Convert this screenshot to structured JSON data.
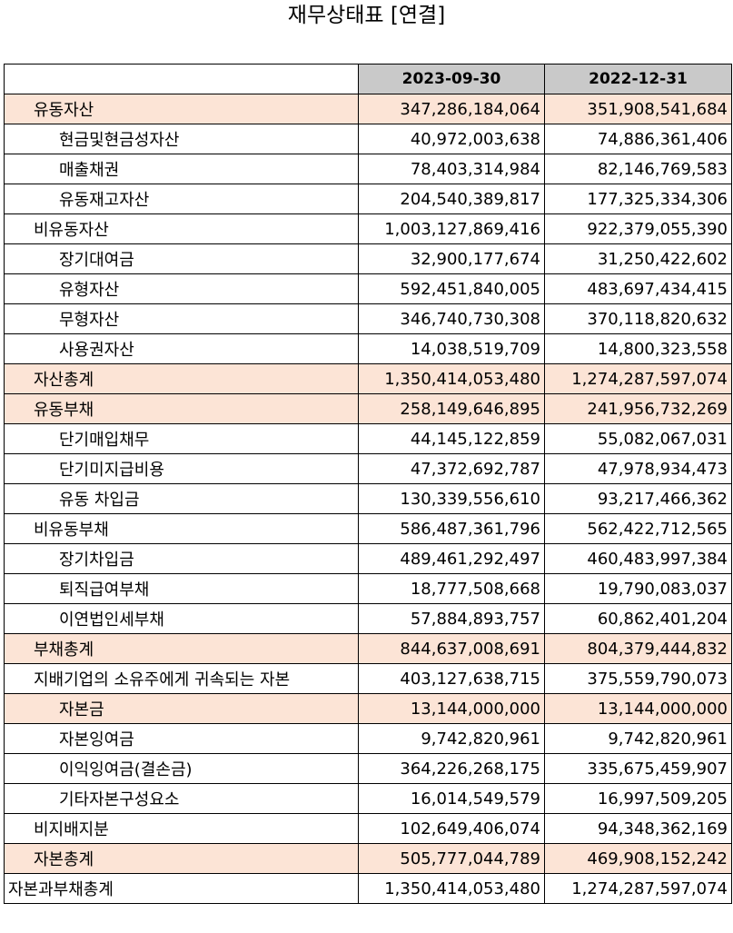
{
  "title": "재무상태표 [연결]",
  "columns": [
    "",
    "2023-09-30",
    "2022-12-31"
  ],
  "colors": {
    "header_bg": "#c9c9c9",
    "highlight_bg": "#fce4d6"
  },
  "rows": [
    {
      "label": "유동자산",
      "level": 1,
      "highlight": true,
      "v2023": "347,286,184,064",
      "v2022": "351,908,541,684"
    },
    {
      "label": "현금및현금성자산",
      "level": 2,
      "highlight": false,
      "v2023": "40,972,003,638",
      "v2022": "74,886,361,406"
    },
    {
      "label": "매출채권",
      "level": 2,
      "highlight": false,
      "v2023": "78,403,314,984",
      "v2022": "82,146,769,583"
    },
    {
      "label": "유동재고자산",
      "level": 2,
      "highlight": false,
      "v2023": "204,540,389,817",
      "v2022": "177,325,334,306"
    },
    {
      "label": "비유동자산",
      "level": 1,
      "highlight": false,
      "v2023": "1,003,127,869,416",
      "v2022": "922,379,055,390"
    },
    {
      "label": "장기대여금",
      "level": 2,
      "highlight": false,
      "v2023": "32,900,177,674",
      "v2022": "31,250,422,602"
    },
    {
      "label": "유형자산",
      "level": 2,
      "highlight": false,
      "v2023": "592,451,840,005",
      "v2022": "483,697,434,415"
    },
    {
      "label": "무형자산",
      "level": 2,
      "highlight": false,
      "v2023": "346,740,730,308",
      "v2022": "370,118,820,632"
    },
    {
      "label": "사용권자산",
      "level": 2,
      "highlight": false,
      "v2023": "14,038,519,709",
      "v2022": "14,800,323,558"
    },
    {
      "label": "자산총계",
      "level": 1,
      "highlight": true,
      "v2023": "1,350,414,053,480",
      "v2022": "1,274,287,597,074"
    },
    {
      "label": "유동부채",
      "level": 1,
      "highlight": true,
      "v2023": "258,149,646,895",
      "v2022": "241,956,732,269"
    },
    {
      "label": "단기매입채무",
      "level": 2,
      "highlight": false,
      "v2023": "44,145,122,859",
      "v2022": "55,082,067,031"
    },
    {
      "label": "단기미지급비용",
      "level": 2,
      "highlight": false,
      "v2023": "47,372,692,787",
      "v2022": "47,978,934,473"
    },
    {
      "label": "유동 차입금",
      "level": 2,
      "highlight": false,
      "v2023": "130,339,556,610",
      "v2022": "93,217,466,362"
    },
    {
      "label": "비유동부채",
      "level": 1,
      "highlight": false,
      "v2023": "586,487,361,796",
      "v2022": "562,422,712,565"
    },
    {
      "label": "장기차입금",
      "level": 2,
      "highlight": false,
      "v2023": "489,461,292,497",
      "v2022": "460,483,997,384"
    },
    {
      "label": "퇴직급여부채",
      "level": 2,
      "highlight": false,
      "v2023": "18,777,508,668",
      "v2022": "19,790,083,037"
    },
    {
      "label": "이연법인세부채",
      "level": 2,
      "highlight": false,
      "v2023": "57,884,893,757",
      "v2022": "60,862,401,204"
    },
    {
      "label": "부채총계",
      "level": 1,
      "highlight": true,
      "v2023": "844,637,008,691",
      "v2022": "804,379,444,832"
    },
    {
      "label": "지배기업의 소유주에게 귀속되는 자본",
      "level": 1,
      "highlight": false,
      "v2023": "403,127,638,715",
      "v2022": "375,559,790,073"
    },
    {
      "label": "자본금",
      "level": 2,
      "highlight": true,
      "v2023": "13,144,000,000",
      "v2022": "13,144,000,000"
    },
    {
      "label": "자본잉여금",
      "level": 2,
      "highlight": false,
      "v2023": "9,742,820,961",
      "v2022": "9,742,820,961"
    },
    {
      "label": "이익잉여금(결손금)",
      "level": 2,
      "highlight": false,
      "v2023": "364,226,268,175",
      "v2022": "335,675,459,907"
    },
    {
      "label": "기타자본구성요소",
      "level": 2,
      "highlight": false,
      "v2023": "16,014,549,579",
      "v2022": "16,997,509,205"
    },
    {
      "label": "비지배지분",
      "level": 1,
      "highlight": false,
      "v2023": "102,649,406,074",
      "v2022": "94,348,362,169"
    },
    {
      "label": "자본총계",
      "level": 1,
      "highlight": true,
      "v2023": "505,777,044,789",
      "v2022": "469,908,152,242"
    },
    {
      "label": "자본과부채총계",
      "level": 0,
      "highlight": false,
      "v2023": "1,350,414,053,480",
      "v2022": "1,274,287,597,074"
    }
  ]
}
